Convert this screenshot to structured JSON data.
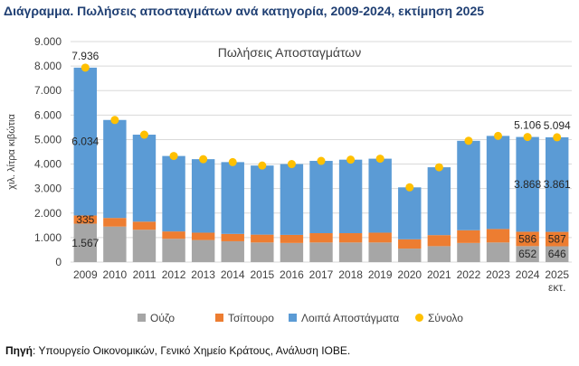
{
  "page": {
    "title": "Διάγραμμα. Πωλήσεις αποσταγμάτων ανά κατηγορία, 2009-2024, εκτίμηση 2025",
    "source_label": "Πηγή",
    "source_text": ": Υπουργείο Οικονομικών, Γενικό Χημείο Κράτους, Ανάλυση ΙΟΒΕ."
  },
  "chart_data": {
    "type": "bar",
    "stacked": true,
    "title": "Πωλήσεις Αποσταγμάτων",
    "ylabel": "χιλ. λίτρα κιβώτια",
    "xlabel": "",
    "ylim": [
      0,
      9000
    ],
    "yticks": [
      "0",
      "1.000",
      "2.000",
      "3.000",
      "4.000",
      "5.000",
      "6.000",
      "7.000",
      "8.000",
      "9.000"
    ],
    "categories": [
      "2009",
      "2010",
      "2011",
      "2012",
      "2013",
      "2014",
      "2015",
      "2016",
      "2017",
      "2018",
      "2019",
      "2020",
      "2021",
      "2022",
      "2023",
      "2024",
      "2025\nεκτ."
    ],
    "grid": true,
    "legend_position": "bottom",
    "series": [
      {
        "name": "Ούζο",
        "color": "#a6a6a6",
        "values": [
          1567,
          1450,
          1320,
          950,
          900,
          850,
          800,
          780,
          800,
          800,
          800,
          550,
          650,
          780,
          800,
          652,
          646
        ]
      },
      {
        "name": "Τσίπουρο",
        "color": "#ed7d31",
        "values": [
          335,
          350,
          330,
          300,
          300,
          300,
          320,
          330,
          380,
          380,
          400,
          380,
          450,
          520,
          550,
          586,
          587
        ]
      },
      {
        "name": "Λοιπά Αποστάγματα",
        "color": "#5b9bd5",
        "values": [
          6034,
          4000,
          3550,
          3080,
          3000,
          2930,
          2820,
          2890,
          2950,
          3000,
          3020,
          2120,
          2770,
          3650,
          3800,
          3868,
          3861
        ]
      }
    ],
    "total": {
      "name": "Σύνολο",
      "color": "#ffc000",
      "values": [
        7936,
        5800,
        5200,
        4330,
        4200,
        4080,
        3940,
        4000,
        4130,
        4180,
        4220,
        3050,
        3870,
        4950,
        5150,
        5106,
        5094
      ]
    },
    "data_labels": [
      {
        "series": "total",
        "index": 0,
        "text": "7.936"
      },
      {
        "series": "Λοιπά Αποστάγματα",
        "index": 0,
        "text": "6.034"
      },
      {
        "series": "Τσίπουρο",
        "index": 0,
        "text": "335"
      },
      {
        "series": "Ούζο",
        "index": 0,
        "text": "1.567"
      },
      {
        "series": "total",
        "index": 15,
        "text": "5.106"
      },
      {
        "series": "total",
        "index": 16,
        "text": "5.094"
      },
      {
        "series": "Λοιπά Αποστάγματα",
        "index": 15,
        "text": "3.868"
      },
      {
        "series": "Λοιπά Αποστάγματα",
        "index": 16,
        "text": "3.861"
      },
      {
        "series": "Τσίπουρο",
        "index": 15,
        "text": "586"
      },
      {
        "series": "Τσίπουρο",
        "index": 16,
        "text": "587"
      },
      {
        "series": "Ούζο",
        "index": 15,
        "text": "652"
      },
      {
        "series": "Ούζο",
        "index": 16,
        "text": "646"
      }
    ]
  }
}
